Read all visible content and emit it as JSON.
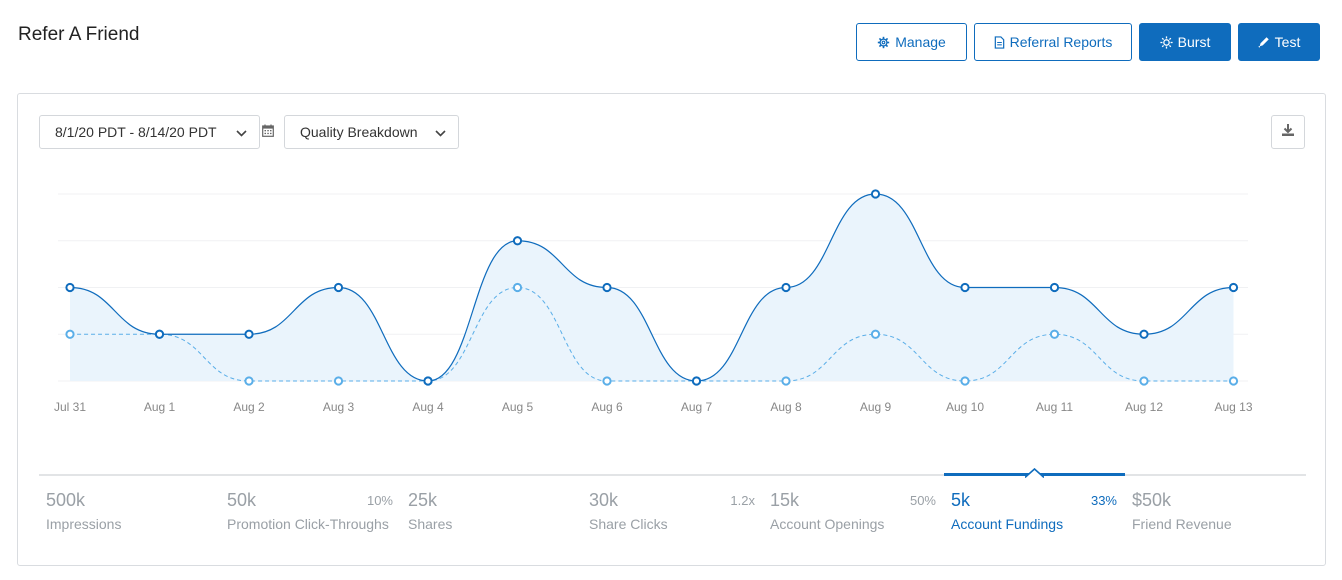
{
  "page": {
    "title": "Refer A Friend"
  },
  "header_buttons": {
    "manage": "Manage",
    "referral_reports": "Referral Reports",
    "burst": "Burst",
    "test": "Test"
  },
  "filters": {
    "date_range": "8/1/20 PDT - 8/14/20 PDT",
    "breakdown": "Quality Breakdown"
  },
  "colors": {
    "accent": "#0f6cbd",
    "light_series": "#5aaee8",
    "area_fill": "#eaf4fc"
  },
  "chart_data": {
    "type": "area",
    "x": [
      "Jul 31",
      "Aug 1",
      "Aug 2",
      "Aug 3",
      "Aug 4",
      "Aug 5",
      "Aug 6",
      "Aug 7",
      "Aug 8",
      "Aug 9",
      "Aug 10",
      "Aug 11",
      "Aug 12",
      "Aug 13"
    ],
    "ylim": [
      0,
      4
    ],
    "grid": true,
    "series": [
      {
        "values": [
          2,
          1,
          1,
          2,
          0,
          3,
          2,
          0,
          2,
          4,
          2,
          2,
          1,
          2
        ],
        "style": "solid",
        "color": "#0f6cbd"
      },
      {
        "values": [
          1,
          1,
          0,
          0,
          0,
          2,
          0,
          0,
          0,
          1,
          0,
          1,
          0,
          0
        ],
        "style": "dashed",
        "color": "#5aaee8"
      }
    ]
  },
  "metrics": [
    {
      "value": "500k",
      "label": "Impressions",
      "pct": ""
    },
    {
      "value": "50k",
      "label": "Promotion Click-Throughs",
      "pct": "10%"
    },
    {
      "value": "25k",
      "label": "Shares",
      "pct": ""
    },
    {
      "value": "30k",
      "label": "Share Clicks",
      "pct": "1.2x"
    },
    {
      "value": "15k",
      "label": "Account Openings",
      "pct": "50%"
    },
    {
      "value": "5k",
      "label": "Account Fundings",
      "pct": "33%"
    },
    {
      "value": "$50k",
      "label": "Friend Revenue",
      "pct": ""
    }
  ],
  "active_metric": "Account Fundings"
}
